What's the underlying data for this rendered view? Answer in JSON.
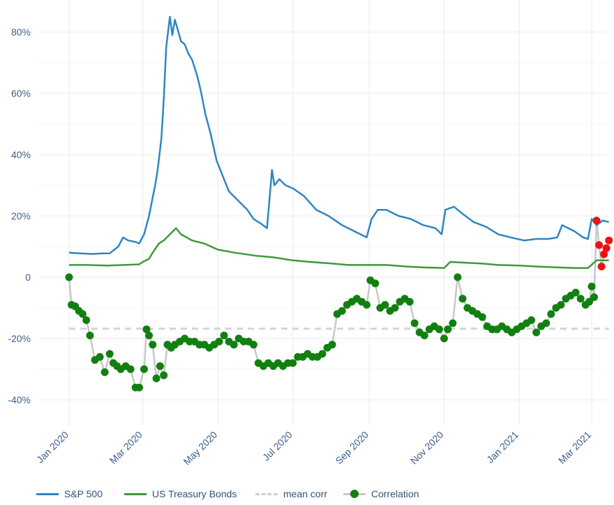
{
  "chart_data": {
    "type": "line",
    "title": "",
    "xlabel": "",
    "ylabel": "",
    "ylim": [
      -45,
      88
    ],
    "yticks": [
      -40,
      -20,
      0,
      20,
      40,
      60,
      80
    ],
    "ytick_labels": [
      "-40%",
      "-20%",
      "0",
      "20%",
      "40%",
      "60%",
      "80%"
    ],
    "x_start": "2020-01-01",
    "x_end": "2021-03-20",
    "x_ticks": [
      {
        "date": "2020-01-01",
        "label": "Jan 2020"
      },
      {
        "date": "2020-03-01",
        "label": "Mar 2020"
      },
      {
        "date": "2020-05-01",
        "label": "May 2020"
      },
      {
        "date": "2020-07-01",
        "label": "Jul 2020"
      },
      {
        "date": "2020-09-01",
        "label": "Sep 2020"
      },
      {
        "date": "2020-11-01",
        "label": "Nov 2020"
      },
      {
        "date": "2021-01-01",
        "label": "Jan 2021"
      },
      {
        "date": "2021-03-01",
        "label": "Mar 2021"
      }
    ],
    "legend_position": "bottom",
    "colors": {
      "sp500": "#2e86c1",
      "bonds": "#3c9a3c",
      "mean": "#d3d3d3",
      "corr_line": "#c8c8c8",
      "corr_point": "#118010",
      "corr_point_high": "#ee1111",
      "grid": "#ebebeb",
      "axis_text": "#3b5f8a"
    },
    "series": [
      {
        "name": "S&P 500",
        "x": [
          "2020-01-01",
          "2020-01-10",
          "2020-01-20",
          "2020-01-28",
          "2020-02-03",
          "2020-02-10",
          "2020-02-14",
          "2020-02-18",
          "2020-02-24",
          "2020-02-27",
          "2020-03-02",
          "2020-03-06",
          "2020-03-09",
          "2020-03-11",
          "2020-03-13",
          "2020-03-16",
          "2020-03-18",
          "2020-03-20",
          "2020-03-23",
          "2020-03-25",
          "2020-03-27",
          "2020-03-30",
          "2020-04-01",
          "2020-04-04",
          "2020-04-07",
          "2020-04-10",
          "2020-04-14",
          "2020-04-17",
          "2020-04-21",
          "2020-04-25",
          "2020-04-30",
          "2020-05-05",
          "2020-05-10",
          "2020-05-15",
          "2020-05-20",
          "2020-05-25",
          "2020-05-30",
          "2020-06-05",
          "2020-06-10",
          "2020-06-14",
          "2020-06-16",
          "2020-06-20",
          "2020-06-25",
          "2020-07-01",
          "2020-07-10",
          "2020-07-20",
          "2020-07-30",
          "2020-08-10",
          "2020-08-20",
          "2020-08-30",
          "2020-09-03",
          "2020-09-08",
          "2020-09-15",
          "2020-09-25",
          "2020-10-05",
          "2020-10-15",
          "2020-10-25",
          "2020-10-30",
          "2020-11-02",
          "2020-11-09",
          "2020-11-15",
          "2020-11-25",
          "2020-12-05",
          "2020-12-15",
          "2020-12-25",
          "2021-01-05",
          "2021-01-15",
          "2021-01-25",
          "2021-02-01",
          "2021-02-05",
          "2021-02-15",
          "2021-02-22",
          "2021-02-26",
          "2021-03-01",
          "2021-03-05",
          "2021-03-10",
          "2021-03-15"
        ],
        "values": [
          8,
          7.8,
          7.6,
          7.8,
          7.8,
          10,
          13,
          12,
          11.5,
          11,
          14,
          20,
          26,
          30,
          35,
          45,
          58,
          75,
          85,
          79,
          84,
          80,
          77,
          76,
          73,
          71,
          66,
          61,
          53,
          47,
          38,
          33,
          28,
          26,
          24,
          22,
          19,
          17.5,
          16,
          35,
          30,
          32,
          30,
          29,
          26.5,
          22,
          20,
          17,
          15,
          13,
          19,
          22,
          22,
          20,
          19,
          17,
          16,
          14,
          22,
          23,
          21,
          18,
          16.5,
          14,
          13,
          12,
          12.5,
          12.5,
          13,
          17,
          15,
          13,
          12.5,
          19,
          17,
          18.5,
          18
        ]
      },
      {
        "name": "US Treasury Bonds",
        "x": [
          "2020-01-01",
          "2020-01-15",
          "2020-02-01",
          "2020-02-15",
          "2020-02-27",
          "2020-03-01",
          "2020-03-06",
          "2020-03-09",
          "2020-03-14",
          "2020-03-18",
          "2020-03-23",
          "2020-03-28",
          "2020-04-01",
          "2020-04-10",
          "2020-04-20",
          "2020-05-01",
          "2020-05-15",
          "2020-06-01",
          "2020-06-15",
          "2020-07-01",
          "2020-07-15",
          "2020-08-01",
          "2020-08-15",
          "2020-09-01",
          "2020-09-15",
          "2020-10-01",
          "2020-10-15",
          "2020-11-01",
          "2020-11-06",
          "2020-11-15",
          "2020-12-01",
          "2020-12-15",
          "2021-01-01",
          "2021-01-15",
          "2021-02-01",
          "2021-02-15",
          "2021-02-26",
          "2021-03-05",
          "2021-03-15"
        ],
        "values": [
          4,
          4,
          3.8,
          4,
          4.2,
          5,
          6,
          8,
          11,
          12,
          14,
          16,
          14,
          12,
          11,
          9,
          8,
          7,
          6.5,
          5.5,
          5,
          4.5,
          4,
          4,
          4,
          3.5,
          3.2,
          3,
          5,
          4.8,
          4.5,
          4,
          3.8,
          3.5,
          3.2,
          3,
          3,
          5.5,
          5.5
        ]
      },
      {
        "name": "mean corr",
        "x": [
          "2020-01-01",
          "2021-03-15"
        ],
        "values": [
          -16.8,
          -16.8
        ]
      },
      {
        "name": "Correlation",
        "x": [
          "2020-01-01",
          "2020-01-03",
          "2020-01-06",
          "2020-01-09",
          "2020-01-12",
          "2020-01-15",
          "2020-01-18",
          "2020-01-22",
          "2020-01-26",
          "2020-01-30",
          "2020-02-03",
          "2020-02-06",
          "2020-02-09",
          "2020-02-12",
          "2020-02-16",
          "2020-02-20",
          "2020-02-24",
          "2020-02-27",
          "2020-03-02",
          "2020-03-04",
          "2020-03-06",
          "2020-03-09",
          "2020-03-12",
          "2020-03-15",
          "2020-03-18",
          "2020-03-21",
          "2020-03-24",
          "2020-03-27",
          "2020-03-31",
          "2020-04-04",
          "2020-04-08",
          "2020-04-12",
          "2020-04-16",
          "2020-04-20",
          "2020-04-24",
          "2020-04-28",
          "2020-05-02",
          "2020-05-06",
          "2020-05-10",
          "2020-05-14",
          "2020-05-18",
          "2020-05-22",
          "2020-05-26",
          "2020-05-30",
          "2020-06-03",
          "2020-06-07",
          "2020-06-11",
          "2020-06-15",
          "2020-06-19",
          "2020-06-23",
          "2020-06-27",
          "2020-07-01",
          "2020-07-05",
          "2020-07-09",
          "2020-07-13",
          "2020-07-17",
          "2020-07-21",
          "2020-07-25",
          "2020-07-29",
          "2020-08-02",
          "2020-08-06",
          "2020-08-10",
          "2020-08-14",
          "2020-08-18",
          "2020-08-22",
          "2020-08-26",
          "2020-08-30",
          "2020-09-02",
          "2020-09-06",
          "2020-09-10",
          "2020-09-14",
          "2020-09-18",
          "2020-09-22",
          "2020-09-26",
          "2020-09-30",
          "2020-10-04",
          "2020-10-08",
          "2020-10-12",
          "2020-10-16",
          "2020-10-20",
          "2020-10-24",
          "2020-10-28",
          "2020-11-01",
          "2020-11-04",
          "2020-11-08",
          "2020-11-12",
          "2020-11-16",
          "2020-11-20",
          "2020-11-24",
          "2020-11-28",
          "2020-12-02",
          "2020-12-06",
          "2020-12-10",
          "2020-12-14",
          "2020-12-18",
          "2020-12-22",
          "2020-12-26",
          "2020-12-30",
          "2021-01-03",
          "2021-01-07",
          "2021-01-11",
          "2021-01-15",
          "2021-01-19",
          "2021-01-23",
          "2021-01-27",
          "2021-01-31",
          "2021-02-04",
          "2021-02-08",
          "2021-02-12",
          "2021-02-16",
          "2021-02-20",
          "2021-02-24",
          "2021-02-27",
          "2021-03-01",
          "2021-03-03",
          "2021-03-05",
          "2021-03-07",
          "2021-03-09",
          "2021-03-11",
          "2021-03-13",
          "2021-03-15"
        ],
        "values": [
          0,
          -9,
          -9.5,
          -11,
          -12,
          -14,
          -19,
          -27,
          -26,
          -31,
          -25,
          -28,
          -29,
          -30,
          -29,
          -30,
          -36,
          -36,
          -30,
          -17,
          -19,
          -22,
          -33,
          -29,
          -32,
          -22,
          -23,
          -22,
          -21,
          -20,
          -21,
          -21,
          -22,
          -22,
          -23,
          -22,
          -21,
          -19,
          -21,
          -22,
          -20,
          -21,
          -21,
          -22,
          -28,
          -29,
          -28,
          -29,
          -28,
          -29,
          -28,
          -28,
          -26,
          -26,
          -25,
          -26,
          -26,
          -25,
          -23,
          -22,
          -12,
          -11,
          -9,
          -8,
          -7,
          -8,
          -9,
          -1,
          -2,
          -10,
          -9,
          -11,
          -10,
          -8,
          -7,
          -8,
          -15,
          -18,
          -19,
          -17,
          -16,
          -17,
          -20,
          -17,
          -15,
          0,
          -7,
          -10,
          -11,
          -12,
          -13,
          -16,
          -17,
          -17,
          -16,
          -17,
          -18,
          -17,
          -16,
          -15,
          -14,
          -18,
          -16,
          -15,
          -12,
          -10,
          -9,
          -7,
          -6,
          -5,
          -7,
          -9,
          -8,
          -3,
          -6.5,
          18.5,
          10.5,
          3.5,
          7.5,
          9.5,
          12
        ]
      }
    ]
  },
  "legend": {
    "sp500_label": "S&P 500",
    "bonds_label": "US Treasury Bonds",
    "mean_label": "mean corr",
    "corr_label": "Correlation"
  }
}
